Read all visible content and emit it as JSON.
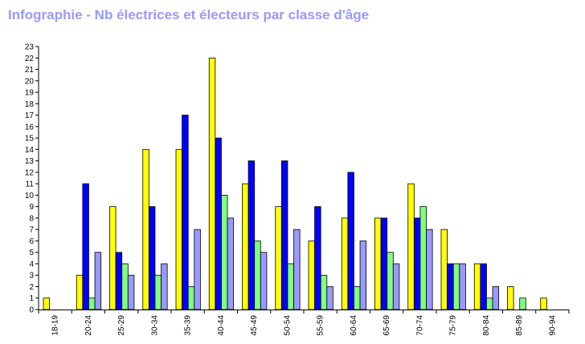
{
  "title": "Infographie - Nb électrices et électeurs par classe d'âge",
  "chart_data": {
    "type": "bar",
    "title": "Infographie - Nb électrices et électeurs par classe d'âge",
    "xlabel": "",
    "ylabel": "",
    "ylim": [
      0,
      23
    ],
    "yticks": [
      0,
      1,
      2,
      3,
      4,
      5,
      6,
      7,
      8,
      9,
      10,
      11,
      12,
      13,
      14,
      15,
      16,
      17,
      18,
      19,
      20,
      21,
      22,
      23
    ],
    "grid": false,
    "legend": "none",
    "categories": [
      "18-19",
      "20-24",
      "25-29",
      "30-34",
      "35-39",
      "40-44",
      "45-49",
      "50-54",
      "55-59",
      "60-64",
      "65-69",
      "70-74",
      "75-79",
      "80-84",
      "85-89",
      "90-94"
    ],
    "series": [
      {
        "color": "#ffff00",
        "values": [
          1,
          3,
          9,
          14,
          14,
          22,
          11,
          9,
          6,
          8,
          8,
          11,
          7,
          4,
          2,
          1
        ]
      },
      {
        "color": "#0000ff",
        "values": [
          0,
          11,
          5,
          9,
          17,
          15,
          13,
          13,
          9,
          12,
          8,
          8,
          4,
          4,
          0,
          0
        ]
      },
      {
        "color": "#80ff80",
        "values": [
          0,
          1,
          4,
          3,
          2,
          10,
          6,
          4,
          3,
          2,
          5,
          9,
          4,
          1,
          1,
          0
        ]
      },
      {
        "color": "#9999ff",
        "values": [
          0,
          5,
          3,
          4,
          7,
          8,
          5,
          7,
          2,
          6,
          4,
          7,
          4,
          2,
          0,
          0
        ]
      }
    ]
  }
}
